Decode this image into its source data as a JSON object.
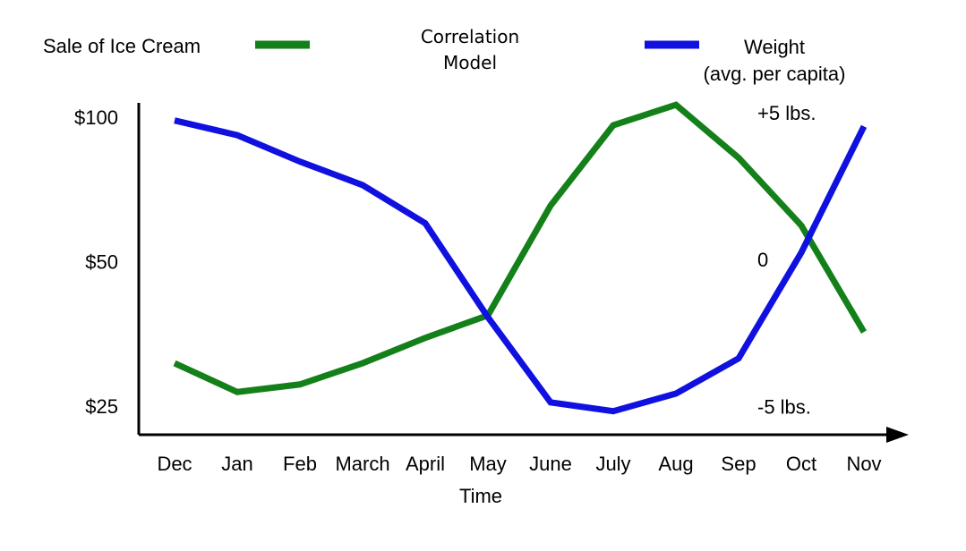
{
  "chart_data": {
    "type": "line",
    "title": "Correlation\nModel",
    "xlabel": "Time",
    "categories": [
      "Dec",
      "Jan",
      "Feb",
      "March",
      "April",
      "May",
      "June",
      "July",
      "Aug",
      "Sep",
      "Oct",
      "Nov"
    ],
    "series": [
      {
        "name": "Sale of Ice Cream",
        "color": "#14801a",
        "values": [
          31,
          27,
          28,
          31,
          35,
          39,
          66,
          97,
          107,
          83,
          60,
          36
        ]
      },
      {
        "name": "Weight\n(avg. per capita)",
        "color": "#1010e0",
        "axis": "y2",
        "values": [
          4.8,
          4.3,
          3.4,
          2.6,
          1.3,
          -1.9,
          -4.8,
          -5.1,
          -4.5,
          -3.3,
          0.3,
          4.6
        ]
      }
    ],
    "ylog": true,
    "ylim": [
      22,
      108
    ],
    "yticks": [
      {
        "value": 100,
        "label": "$100"
      },
      {
        "value": 50,
        "label": "$50"
      },
      {
        "value": 25,
        "label": "$25"
      }
    ],
    "y2lim": [
      -5.9,
      5.4
    ],
    "y2ticks": [
      {
        "value": 5,
        "label": "+5 lbs."
      },
      0,
      {
        "value": -5,
        "label": "-5 lbs."
      }
    ]
  }
}
